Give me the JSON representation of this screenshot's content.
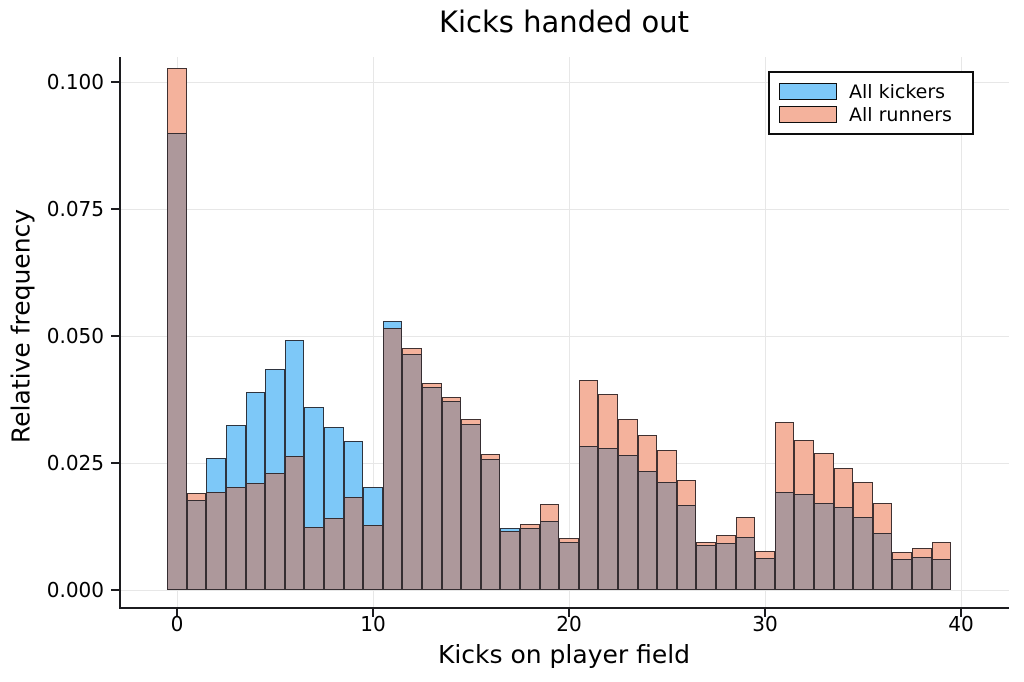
{
  "chart_data": {
    "type": "bar",
    "subtype": "overlaid-histogram",
    "title": "Kicks handed out",
    "xlabel": "Kicks on player field",
    "ylabel": "Relative frequency",
    "grid": true,
    "legend_position": "top-right",
    "bin_width": 1,
    "bin_centers": [
      0,
      1,
      2,
      3,
      4,
      5,
      6,
      7,
      8,
      9,
      10,
      11,
      12,
      13,
      14,
      15,
      16,
      17,
      18,
      19,
      20,
      21,
      22,
      23,
      24,
      25,
      26,
      27,
      28,
      29,
      30,
      31,
      32,
      33,
      34,
      35,
      36,
      37,
      38,
      39
    ],
    "series": [
      {
        "name": "All kickers",
        "color": "#7DC8F8",
        "values": [
          0.09,
          0.0178,
          0.026,
          0.0325,
          0.039,
          0.0435,
          0.0493,
          0.036,
          0.032,
          0.0293,
          0.0203,
          0.053,
          0.0465,
          0.0399,
          0.0372,
          0.0327,
          0.0257,
          0.0123,
          0.0122,
          0.0135,
          0.0095,
          0.0284,
          0.028,
          0.0266,
          0.0235,
          0.0213,
          0.0167,
          0.0089,
          0.0092,
          0.0104,
          0.0063,
          0.0192,
          0.0188,
          0.0172,
          0.0163,
          0.0143,
          0.0112,
          0.0062,
          0.0064,
          0.0062
        ]
      },
      {
        "name": "All runners",
        "color": "#F4B29C",
        "values": [
          0.1027,
          0.019,
          0.0192,
          0.0202,
          0.021,
          0.023,
          0.0264,
          0.0125,
          0.0141,
          0.0184,
          0.0128,
          0.0515,
          0.0477,
          0.0407,
          0.038,
          0.0336,
          0.0268,
          0.0117,
          0.013,
          0.0169,
          0.0103,
          0.0413,
          0.0385,
          0.0336,
          0.0305,
          0.0276,
          0.0217,
          0.0095,
          0.0108,
          0.0144,
          0.0077,
          0.0331,
          0.0295,
          0.0269,
          0.0241,
          0.0213,
          0.0171,
          0.0075,
          0.0082,
          0.0095
        ]
      }
    ],
    "overlap_color": "#AD989B",
    "xlim": [
      -3,
      42.4
    ],
    "ylim": [
      0,
      0.105
    ],
    "xticks": [
      0,
      10,
      20,
      30,
      40
    ],
    "xtick_labels": [
      "0",
      "10",
      "20",
      "30",
      "40"
    ],
    "yticks": [
      0.0,
      0.025,
      0.05,
      0.075,
      0.1
    ],
    "ytick_labels": [
      "0.000",
      "0.025",
      "0.050",
      "0.075",
      "0.100"
    ]
  }
}
